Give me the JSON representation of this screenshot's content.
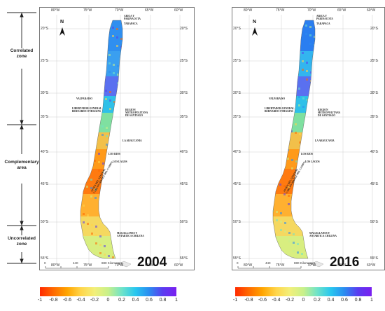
{
  "zones": [
    {
      "label": "Correlated\nzone"
    },
    {
      "label": "Complementary\narea"
    },
    {
      "label": "Uncorrelated\nzone"
    }
  ],
  "maps": [
    {
      "year": "2004",
      "lon_ticks": [
        "80°W",
        "75°W",
        "70°W",
        "65°W",
        "60°W"
      ],
      "lat_ticks": [
        "20°S",
        "25°S",
        "30°S",
        "35°S",
        "40°S",
        "45°S",
        "50°S",
        "55°S"
      ],
      "north_label": "N",
      "scale": {
        "zero": "0",
        "mid": "440",
        "end": "880 Kilometers"
      },
      "regions": [
        "ARICA Y\nPARINACOTA",
        "TARAPACA",
        "VALPARAISO",
        "LIBERTADOR GENERAL\nBERNARDO O'HIGGINS",
        "REGION\nMETROPOLITANA\nDE SANTIAGO",
        "LA ARAUCANIA",
        "LOS RIOS",
        "LOS LAGOS",
        "AYSEN DEL GENERAL\nCARLOS IBAÑEZ DEL CAMPO",
        "MAGALLANES Y\nANTARTICA CHILENA"
      ]
    },
    {
      "year": "2016",
      "lon_ticks": [
        "80°W",
        "75°W",
        "70°W",
        "65°W",
        "60°W"
      ],
      "lat_ticks": [
        "20°S",
        "25°S",
        "30°S",
        "35°S",
        "40°S",
        "45°S",
        "50°S",
        "55°S"
      ],
      "north_label": "N",
      "scale": {
        "zero": "0",
        "mid": "440",
        "end": "880 Kilometers"
      },
      "regions": [
        "ARICA Y\nPARINACOTA",
        "TARAPACA",
        "VALPARAISO",
        "LIBERTADOR GENERAL\nBERNARDO O'HIGGINS",
        "REGION\nMETROPOLITANA\nDE SANTIAGO",
        "LA ARAUCANIA",
        "LOS RIOS",
        "LOS LAGOS",
        "AYSEN DEL GENERAL\nCARLOS IBAÑEZ DEL CAMPO",
        "MAGALLANES Y\nANTARTICA CHILENA"
      ]
    }
  ],
  "colorbar": {
    "ticks": [
      "-1",
      "-0.8",
      "-0.6",
      "-0.4",
      "-0.2",
      "0",
      "0.2",
      "0.4",
      "0.6",
      "0.8",
      "1"
    ],
    "colors": [
      "#ff2a00",
      "#ff6a00",
      "#ffa500",
      "#ffd54a",
      "#f2ef7a",
      "#c8f08a",
      "#6fe3c8",
      "#28c7ef",
      "#2a8cf0",
      "#5a3cf0",
      "#7a1ff0"
    ]
  }
}
